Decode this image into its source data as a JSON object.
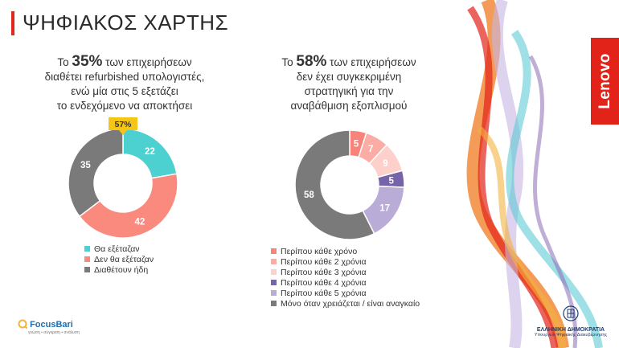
{
  "header": {
    "title": "ΨΗΦΙΑΚΟΣ ΧΑΡΤΗΣ"
  },
  "left": {
    "heading": {
      "prefix": "Το ",
      "pct": "35%",
      "line1": " των επιχειρήσεων",
      "line2": "διαθέτει refurbished υπολογιστές,",
      "line3": "ενώ μία στις 5 εξετάζει",
      "line4": "το ενδεχόμενο να αποκτήσει"
    },
    "callout": "57%"
  },
  "right": {
    "heading": {
      "prefix": "Το ",
      "pct": "58%",
      "line1": " των επιχειρήσεων",
      "line2": "δεν έχει συγκεκριμένη",
      "line3": "στρατηγική για την",
      "line4": "αναβάθμιση εξοπλισμού"
    }
  },
  "chart_data": [
    {
      "type": "pie",
      "categories": [
        "Θα εξέταζαν",
        "Δεν θα εξέταζαν",
        "Διαθέτουν ήδη"
      ],
      "values": [
        22,
        42,
        35
      ],
      "colors": [
        "#4dd0d0",
        "#fa8a7e",
        "#7a7a7a"
      ],
      "annotation": "57%",
      "legend_position": "bottom"
    },
    {
      "type": "pie",
      "categories": [
        "Περίπου κάθε χρόνο",
        "Περίπου κάθε 2 χρόνια",
        "Περίπου κάθε 3 χρόνια",
        "Περίπου κάθε 4 χρόνια",
        "Περίπου κάθε 5 χρόνια",
        "Μόνο όταν χρειάζεται / είναι αναγκαίο"
      ],
      "values": [
        5,
        7,
        9,
        5,
        17,
        58
      ],
      "colors": [
        "#f8837a",
        "#fbaca4",
        "#fdd0cb",
        "#7763a9",
        "#b9acd6",
        "#7a7a7a"
      ],
      "legend_position": "bottom"
    }
  ],
  "branding": {
    "lenovo": "Lenovo",
    "focus_name": "FocusBari",
    "focus_tagline": "γνώση • σύγκριση • ανάλυση",
    "gov_main": "ΕΛΛΗΝΙΚΗ ΔΗΜΟΚΡΑΤΙΑ",
    "gov_sub": "Υπουργείο Ψηφιακής Διακυβέρνησης"
  }
}
